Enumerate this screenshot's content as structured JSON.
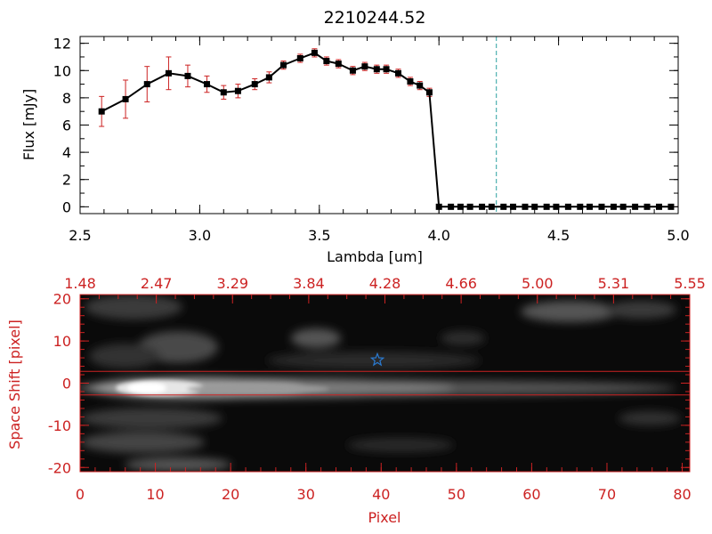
{
  "chart_data": [
    {
      "type": "line",
      "title": "2210244.52",
      "xlabel": "Lambda [um]",
      "ylabel": "Flux [mJy]",
      "xlim": [
        2.5,
        5.0
      ],
      "ylim": [
        -0.5,
        12.5
      ],
      "xticks": [
        "2.5",
        "3.0",
        "3.5",
        "4.0",
        "4.5",
        "5.0"
      ],
      "yticks": [
        "0",
        "2",
        "4",
        "6",
        "8",
        "10",
        "12"
      ],
      "marker": "square",
      "colors": {
        "line": "#000000",
        "marker": "#000000",
        "errorbar": "#cc2222",
        "vline": "#2aa0a0",
        "baseline": "#cc2222"
      },
      "vline_x": 4.24,
      "series": [
        {
          "x": [
            2.59,
            2.69,
            2.78,
            2.87,
            2.95,
            3.03,
            3.1,
            3.16,
            3.23,
            3.29,
            3.35,
            3.42,
            3.48,
            3.53,
            3.58,
            3.64,
            3.69,
            3.74,
            3.78,
            3.83,
            3.88,
            3.92,
            3.96,
            4.0,
            4.05,
            4.09,
            4.13,
            4.18,
            4.22,
            4.27,
            4.31,
            4.36,
            4.4,
            4.45,
            4.49,
            4.54,
            4.59,
            4.63,
            4.68,
            4.73,
            4.77,
            4.82,
            4.87,
            4.92,
            4.97
          ],
          "y": [
            7.0,
            7.9,
            9.0,
            9.8,
            9.6,
            9.0,
            8.4,
            8.5,
            9.0,
            9.5,
            10.4,
            10.9,
            11.3,
            10.7,
            10.5,
            10.0,
            10.3,
            10.1,
            10.1,
            9.8,
            9.2,
            8.9,
            8.4,
            0,
            0,
            0,
            0,
            0,
            0,
            0,
            0,
            0,
            0,
            0,
            0,
            0,
            0,
            0,
            0,
            0,
            0,
            0,
            0,
            0,
            0
          ],
          "yerr": [
            1.1,
            1.4,
            1.3,
            1.2,
            0.8,
            0.6,
            0.5,
            0.5,
            0.4,
            0.4,
            0.3,
            0.3,
            0.3,
            0.3,
            0.3,
            0.3,
            0.3,
            0.3,
            0.3,
            0.3,
            0.3,
            0.3,
            0.3,
            0.1,
            0.1,
            0.1,
            0.1,
            0.1,
            0.1,
            0.1,
            0.1,
            0.1,
            0.1,
            0.1,
            0.1,
            0.1,
            0.1,
            0.1,
            0.1,
            0.1,
            0.1,
            0.1,
            0.1,
            0.1,
            0.1
          ]
        }
      ]
    },
    {
      "type": "heatmap",
      "xlabel": "Pixel",
      "ylabel": "Space Shift [pixel]",
      "xlim": [
        0,
        81
      ],
      "ylim": [
        -21,
        21
      ],
      "xticks": [
        "0",
        "10",
        "20",
        "30",
        "40",
        "50",
        "60",
        "70",
        "80"
      ],
      "yticks": [
        "20",
        "10",
        "0",
        "-10",
        "-20"
      ],
      "top_xticks": [
        "1.48",
        "2.47",
        "3.29",
        "3.84",
        "4.28",
        "4.66",
        "5.00",
        "5.31",
        "5.55"
      ],
      "extraction_aperture": [
        -2.8,
        2.8
      ],
      "star_marker": {
        "x": 39.5,
        "y": 5.5
      },
      "colors": {
        "axis": "#cc2222",
        "aperture": "#cc2222",
        "star": "#2a7ad0"
      }
    }
  ]
}
